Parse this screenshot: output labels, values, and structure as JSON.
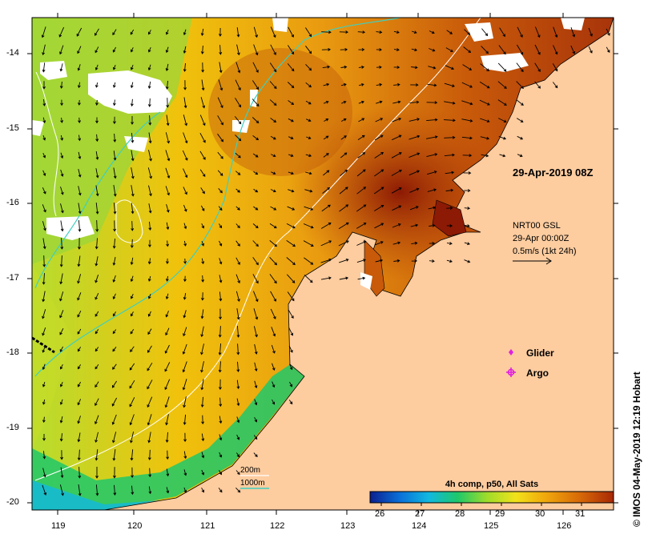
{
  "map": {
    "timestamp": "29-Apr-2019 08Z",
    "current_legend": {
      "title": "NRT00 GSL",
      "date": "29-Apr 00:00Z",
      "scale": "0.5m/s (1kt 24h)"
    },
    "markers_legend": [
      {
        "label": "Glider",
        "color": "#e020e0",
        "symbol": "diamond"
      },
      {
        "label": "Argo",
        "color": "#e020e0",
        "symbol": "star"
      }
    ],
    "isobath_legend": [
      {
        "label": "200m",
        "color": "#ffffff"
      },
      {
        "label": "1000m",
        "color": "#3fcfc0"
      }
    ],
    "colorbar": {
      "title": "4h comp, p50, All Sats",
      "ticks": [
        "26",
        "27",
        "28",
        "29",
        "30",
        "31"
      ],
      "colors": [
        "#0b1f8f",
        "#0a6fd8",
        "#12b8e0",
        "#1ec86a",
        "#9fdc2a",
        "#f2e21a",
        "#f0a80c",
        "#d86a08",
        "#a82806"
      ]
    },
    "copyright": "© IMOS 04-May-2019 12:19 Hobart",
    "axes": {
      "lat_ticks": [
        "-14",
        "-15",
        "-16",
        "-17",
        "-18",
        "-19",
        "-20"
      ],
      "lon_ticks": [
        "119",
        "120",
        "121",
        "122",
        "123",
        "124",
        "125",
        "126"
      ]
    },
    "colors": {
      "land": "#fdcc9f",
      "cloud": "#ffffff",
      "coast": "#000000"
    }
  }
}
